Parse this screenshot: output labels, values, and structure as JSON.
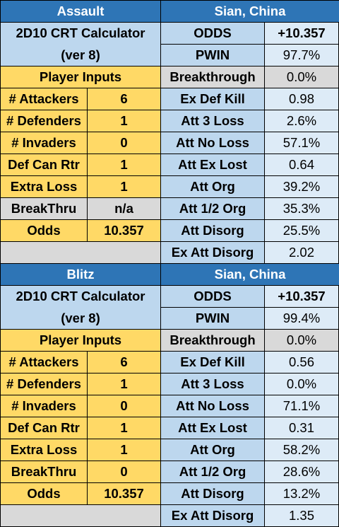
{
  "blocks": [
    {
      "mode": "Assault",
      "location": "Sian, China",
      "calc_title": "2D10 CRT Calculator",
      "calc_version": "(ver 8)",
      "inputs_header": "Player Inputs",
      "inputs": [
        {
          "label": "# Attackers",
          "value": "6"
        },
        {
          "label": "# Defenders",
          "value": "1"
        },
        {
          "label": "# Invaders",
          "value": "0"
        },
        {
          "label": "Def Can Rtr",
          "value": "1"
        },
        {
          "label": "Extra Loss",
          "value": "1"
        },
        {
          "label": "BreakThru",
          "value": "n/a"
        },
        {
          "label": "Odds",
          "value": "10.357"
        }
      ],
      "results": [
        {
          "label": "ODDS",
          "value": "+10.357"
        },
        {
          "label": "PWIN",
          "value": "97.7%"
        },
        {
          "label": "Breakthrough",
          "value": "0.0%"
        },
        {
          "label": "Ex Def Kill",
          "value": "0.98"
        },
        {
          "label": "Att 3 Loss",
          "value": "2.6%"
        },
        {
          "label": "Att No Loss",
          "value": "57.1%"
        },
        {
          "label": "Att Ex Lost",
          "value": "0.64"
        },
        {
          "label": "Att Org",
          "value": "39.2%"
        },
        {
          "label": "Att 1/2 Org",
          "value": "35.3%"
        },
        {
          "label": "Att Disorg",
          "value": "25.5%"
        },
        {
          "label": "Ex Att Disorg",
          "value": "2.02"
        }
      ]
    },
    {
      "mode": "Blitz",
      "location": "Sian, China",
      "calc_title": "2D10 CRT Calculator",
      "calc_version": "(ver 8)",
      "inputs_header": "Player Inputs",
      "inputs": [
        {
          "label": "# Attackers",
          "value": "6"
        },
        {
          "label": "# Defenders",
          "value": "1"
        },
        {
          "label": "# Invaders",
          "value": "0"
        },
        {
          "label": "Def Can Rtr",
          "value": "1"
        },
        {
          "label": "Extra Loss",
          "value": "1"
        },
        {
          "label": "BreakThru",
          "value": "0"
        },
        {
          "label": "Odds",
          "value": "10.357"
        }
      ],
      "results": [
        {
          "label": "ODDS",
          "value": "+10.357"
        },
        {
          "label": "PWIN",
          "value": "99.4%"
        },
        {
          "label": "Breakthrough",
          "value": "0.0%"
        },
        {
          "label": "Ex Def Kill",
          "value": "0.56"
        },
        {
          "label": "Att 3 Loss",
          "value": "0.0%"
        },
        {
          "label": "Att No Loss",
          "value": "71.1%"
        },
        {
          "label": "Att Ex Lost",
          "value": "0.31"
        },
        {
          "label": "Att Org",
          "value": "58.2%"
        },
        {
          "label": "Att 1/2 Org",
          "value": "28.6%"
        },
        {
          "label": "Att Disorg",
          "value": "13.2%"
        },
        {
          "label": "Ex Att Disorg",
          "value": "1.35"
        }
      ]
    }
  ],
  "colors": {
    "header_blue": "#2e75b6",
    "light_blue": "#bdd7ee",
    "pale_blue": "#ddebf7",
    "gold": "#ffd966",
    "grey": "#d9d9d9"
  }
}
